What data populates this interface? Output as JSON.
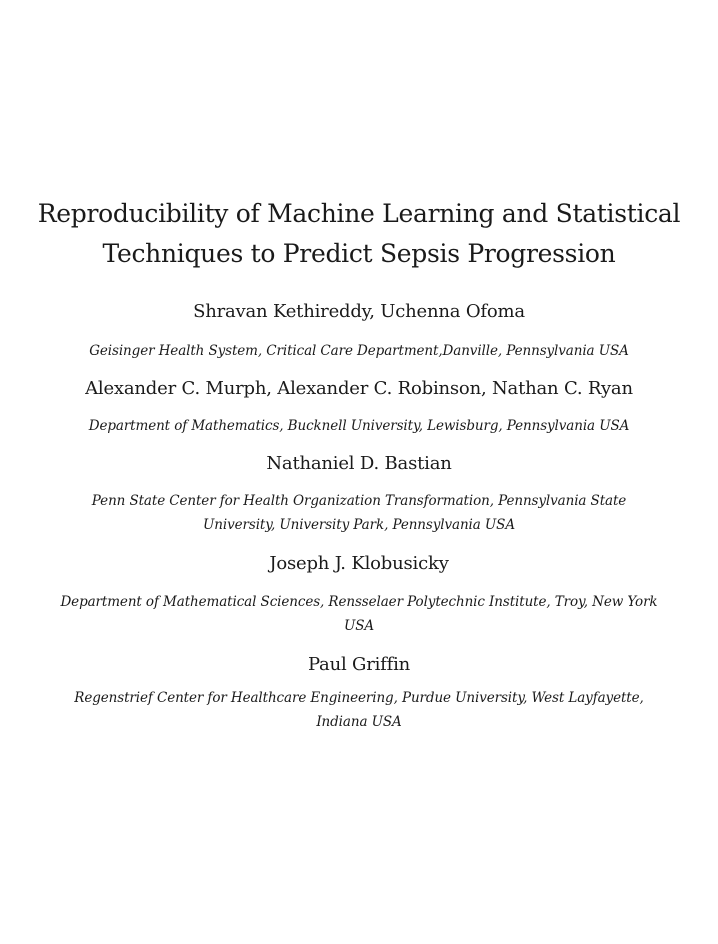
{
  "paper": {
    "title_lines": [
      "Reproducibility of Machine Learning and Statistical",
      "Techniques to Predict Sepsis Progression"
    ],
    "author_groups": [
      {
        "authors": "Shravan Kethireddy, Uchenna Ofoma",
        "affiliation_lines": [
          "Geisinger Health System, Critical Care Department,Danville, Pennsylvania USA"
        ]
      },
      {
        "authors": "Alexander C. Murph, Alexander C. Robinson, Nathan C. Ryan",
        "affiliation_lines": [
          "Department of Mathematics, Bucknell University, Lewisburg, Pennsylvania USA"
        ]
      },
      {
        "authors": "Nathaniel D. Bastian",
        "affiliation_lines": [
          "Penn State Center for Health Organization Transformation, Pennsylvania State",
          "University, University Park, Pennsylvania USA"
        ]
      },
      {
        "authors": "Joseph J. Klobusicky",
        "affiliation_lines": [
          "Department of Mathematical Sciences, Rensselaer Polytechnic Institute, Troy, New York",
          "USA"
        ]
      },
      {
        "authors": "Paul Griffin",
        "affiliation_lines": [
          "Regenstrief Center for Healthcare Engineering, Purdue University, West Layfayette,",
          "Indiana USA"
        ]
      }
    ]
  }
}
